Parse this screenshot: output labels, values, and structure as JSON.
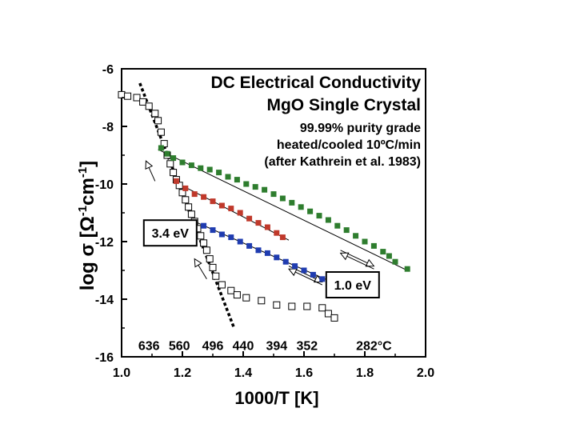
{
  "chart_data": {
    "type": "scatter",
    "title_lines": [
      "DC Electrical Conductivity",
      "MgO Single Crystal"
    ],
    "subtitle_lines": [
      "99.99% purity grade",
      "heated/cooled 10ºC/min",
      "(after Kathrein et al. 1983)"
    ],
    "xlabel": "1000/T [K]",
    "ylabel": {
      "main": "log σ [Ω",
      "sup1": "-1",
      "mid": "cm",
      "sup2": "-1",
      "end": "]"
    },
    "xlim": [
      1.0,
      2.0
    ],
    "ylim": [
      -16,
      -6
    ],
    "x_ticks": [
      "1.0",
      "1.2",
      "1.4",
      "1.6",
      "1.8",
      "2.0"
    ],
    "y_ticks": [
      "-6",
      "-8",
      "-10",
      "-12",
      "-14",
      "-16"
    ],
    "x_tick_values": [
      1.0,
      1.2,
      1.4,
      1.6,
      1.8,
      2.0
    ],
    "y_tick_values": [
      -6,
      -8,
      -10,
      -12,
      -14,
      -16
    ],
    "temperature_labels": [
      {
        "text": "636",
        "x": 1.09
      },
      {
        "text": "560",
        "x": 1.19
      },
      {
        "text": "496",
        "x": 1.3
      },
      {
        "text": "440",
        "x": 1.4
      },
      {
        "text": "394",
        "x": 1.51
      },
      {
        "text": "352",
        "x": 1.61
      },
      {
        "text": "282°C",
        "x": 1.83
      }
    ],
    "temperature_label_y": -15.6,
    "annotations": [
      {
        "text": "3.4 eV",
        "x": 1.16,
        "y": -11.7
      },
      {
        "text": "1.0 eV",
        "x": 1.76,
        "y": -13.5
      }
    ],
    "series": [
      {
        "marker": "open-square",
        "color": "#000000",
        "x": [
          1.0,
          1.02,
          1.05,
          1.07,
          1.09,
          1.11,
          1.12,
          1.13,
          1.14,
          1.15,
          1.16,
          1.17,
          1.18,
          1.19,
          1.2,
          1.21,
          1.22,
          1.23,
          1.24,
          1.25,
          1.26,
          1.27,
          1.28,
          1.29,
          1.3,
          1.31,
          1.33,
          1.36,
          1.38,
          1.41,
          1.46,
          1.51,
          1.56,
          1.61,
          1.66,
          1.68,
          1.7
        ],
        "y": [
          -6.9,
          -6.95,
          -7.0,
          -7.15,
          -7.3,
          -7.55,
          -7.8,
          -8.2,
          -8.6,
          -9.0,
          -9.3,
          -9.6,
          -9.85,
          -10.05,
          -10.3,
          -10.55,
          -10.8,
          -11.05,
          -11.3,
          -11.55,
          -11.8,
          -12.05,
          -12.3,
          -12.6,
          -12.9,
          -13.2,
          -13.5,
          -13.7,
          -13.85,
          -13.95,
          -14.05,
          -14.2,
          -14.25,
          -14.25,
          -14.3,
          -14.5,
          -14.65
        ]
      },
      {
        "marker": "filled-square",
        "color": "#2e7d2e",
        "x": [
          1.13,
          1.15,
          1.17,
          1.2,
          1.23,
          1.26,
          1.29,
          1.32,
          1.35,
          1.38,
          1.41,
          1.44,
          1.47,
          1.5,
          1.53,
          1.56,
          1.59,
          1.62,
          1.65,
          1.68,
          1.71,
          1.74,
          1.77,
          1.8,
          1.83,
          1.86,
          1.88,
          1.9,
          1.94
        ],
        "y": [
          -8.75,
          -8.95,
          -9.1,
          -9.25,
          -9.35,
          -9.45,
          -9.5,
          -9.6,
          -9.75,
          -9.85,
          -10.0,
          -10.1,
          -10.2,
          -10.35,
          -10.5,
          -10.65,
          -10.8,
          -10.95,
          -11.1,
          -11.25,
          -11.45,
          -11.6,
          -11.8,
          -12.0,
          -12.15,
          -12.35,
          -12.5,
          -12.7,
          -12.95
        ]
      },
      {
        "marker": "filled-square",
        "color": "#c0392b",
        "x": [
          1.18,
          1.21,
          1.24,
          1.27,
          1.3,
          1.33,
          1.36,
          1.39,
          1.42,
          1.45,
          1.48,
          1.51,
          1.53
        ],
        "y": [
          -9.9,
          -10.15,
          -10.35,
          -10.45,
          -10.6,
          -10.75,
          -10.85,
          -11.0,
          -11.2,
          -11.35,
          -11.5,
          -11.7,
          -11.85
        ]
      },
      {
        "marker": "filled-square",
        "color": "#1f3cb0",
        "x": [
          1.27,
          1.3,
          1.33,
          1.36,
          1.39,
          1.42,
          1.45,
          1.48,
          1.51,
          1.54,
          1.57,
          1.6,
          1.63,
          1.66
        ],
        "y": [
          -11.45,
          -11.6,
          -11.75,
          -11.85,
          -12.0,
          -12.15,
          -12.3,
          -12.4,
          -12.55,
          -12.7,
          -12.85,
          -13.0,
          -13.15,
          -13.3
        ]
      }
    ],
    "fit_lines": [
      {
        "style": "dotted-thick",
        "x": [
          1.06,
          1.37
        ],
        "y": [
          -6.5,
          -15.0
        ]
      },
      {
        "style": "solid-thin",
        "x": [
          1.12,
          1.94
        ],
        "y": [
          -8.8,
          -13.0
        ]
      },
      {
        "style": "solid-thin",
        "x": [
          1.17,
          1.55
        ],
        "y": [
          -9.9,
          -11.95
        ]
      },
      {
        "style": "solid-thin",
        "x": [
          1.25,
          1.68
        ],
        "y": [
          -11.35,
          -13.35
        ]
      }
    ],
    "arrows": [
      {
        "x": [
          1.11,
          1.08
        ],
        "y": [
          -9.9,
          -9.2
        ]
      },
      {
        "x": [
          1.28,
          1.24
        ],
        "y": [
          -13.3,
          -12.6
        ]
      },
      {
        "x": [
          1.72,
          1.83
        ],
        "y": [
          -12.3,
          -12.85
        ]
      },
      {
        "x": [
          1.83,
          1.72
        ],
        "y": [
          -12.95,
          -12.4
        ]
      },
      {
        "x": [
          1.55,
          1.66
        ],
        "y": [
          -12.85,
          -13.4
        ]
      },
      {
        "x": [
          1.66,
          1.55
        ],
        "y": [
          -13.5,
          -12.95
        ]
      }
    ]
  }
}
